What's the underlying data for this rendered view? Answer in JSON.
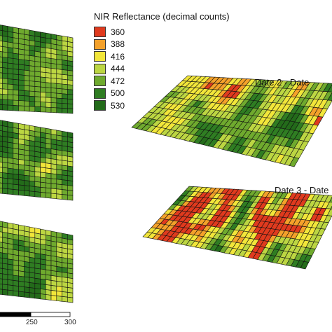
{
  "legend": {
    "title": "NIR Reflectance (decimal counts)",
    "classes": [
      {
        "label": "360",
        "color": "#e03a1e"
      },
      {
        "label": "388",
        "color": "#f4a12a"
      },
      {
        "label": "416",
        "color": "#f2e63a"
      },
      {
        "label": "444",
        "color": "#bcd642"
      },
      {
        "label": "472",
        "color": "#6faa2e"
      },
      {
        "label": "500",
        "color": "#2f7d22"
      },
      {
        "label": "530",
        "color": "#236b1a"
      }
    ]
  },
  "panels": [
    {
      "id": "left-top",
      "label": "",
      "palette_weights": [
        0,
        0,
        0.02,
        0.2,
        0.45,
        0.28,
        0.05
      ]
    },
    {
      "id": "left-middle",
      "label": "",
      "palette_weights": [
        0,
        0,
        0.02,
        0.18,
        0.4,
        0.32,
        0.08
      ]
    },
    {
      "id": "left-bottom",
      "label": "",
      "palette_weights": [
        0,
        0,
        0.03,
        0.22,
        0.42,
        0.28,
        0.05
      ]
    },
    {
      "id": "right-top",
      "label": "Date 2 - Date",
      "palette_weights": [
        0.02,
        0.06,
        0.22,
        0.3,
        0.24,
        0.14,
        0.02
      ]
    },
    {
      "id": "right-bottom",
      "label": "Date 3 - Date",
      "palette_weights": [
        0.3,
        0.14,
        0.22,
        0.18,
        0.1,
        0.05,
        0.01
      ]
    }
  ],
  "scale_bar": {
    "ticks": [
      "250",
      "300"
    ],
    "segment_colors": [
      "#000000",
      "#ffffff"
    ]
  }
}
